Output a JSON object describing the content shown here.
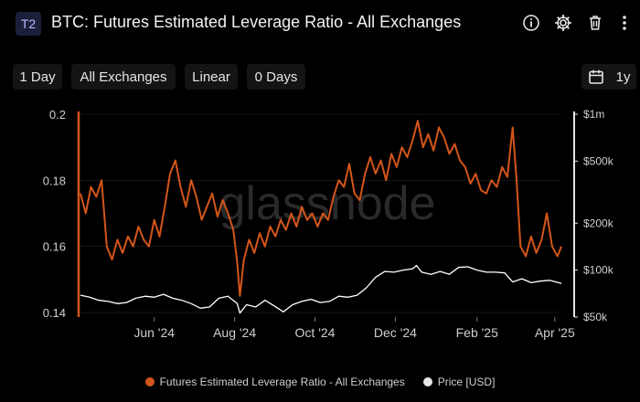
{
  "header": {
    "badge": "T2",
    "title": "BTC: Futures Estimated Leverage Ratio - All Exchanges",
    "icons": [
      "info-icon",
      "gear-icon",
      "trash-icon",
      "more-vertical-icon"
    ]
  },
  "toolbar": {
    "resolution": "1 Day",
    "exchange": "All Exchanges",
    "scale": "Linear",
    "sma": "0 Days",
    "calendar_icon": "calendar-icon",
    "range": "1y"
  },
  "watermark": "glassnode",
  "colors": {
    "series1": "#d4561a",
    "series2": "#ffffff",
    "background": "#000000"
  },
  "chart_data": {
    "type": "line",
    "x_ticks": [
      "Jun '24",
      "Aug '24",
      "Oct '24",
      "Dec '24",
      "Feb '25",
      "Apr '25"
    ],
    "y_left_ticks": [
      "0.2",
      "0.18",
      "0.16",
      "0.14"
    ],
    "y_left_lim": [
      0.14,
      0.2
    ],
    "y_right_ticks": [
      "$1m",
      "$500k",
      "$200k",
      "$100k",
      "$50k"
    ],
    "y_right_scale": "log",
    "y_right_lim": [
      50000,
      1000000
    ],
    "x_range": [
      "2024-04-06",
      "2025-04-06"
    ],
    "series": [
      {
        "name": "Futures Estimated Leverage Ratio - All Exchanges",
        "axis": "left",
        "color": "#d4561a",
        "points": [
          [
            "2024-04-06",
            0.176
          ],
          [
            "2024-04-10",
            0.17
          ],
          [
            "2024-04-14",
            0.178
          ],
          [
            "2024-04-18",
            0.175
          ],
          [
            "2024-04-22",
            0.18
          ],
          [
            "2024-04-26",
            0.16
          ],
          [
            "2024-04-30",
            0.156
          ],
          [
            "2024-05-04",
            0.162
          ],
          [
            "2024-05-08",
            0.158
          ],
          [
            "2024-05-12",
            0.163
          ],
          [
            "2024-05-16",
            0.16
          ],
          [
            "2024-05-20",
            0.166
          ],
          [
            "2024-05-24",
            0.162
          ],
          [
            "2024-05-28",
            0.16
          ],
          [
            "2024-06-01",
            0.168
          ],
          [
            "2024-06-05",
            0.163
          ],
          [
            "2024-06-09",
            0.172
          ],
          [
            "2024-06-13",
            0.182
          ],
          [
            "2024-06-17",
            0.186
          ],
          [
            "2024-06-21",
            0.178
          ],
          [
            "2024-06-25",
            0.172
          ],
          [
            "2024-06-29",
            0.18
          ],
          [
            "2024-07-03",
            0.175
          ],
          [
            "2024-07-07",
            0.168
          ],
          [
            "2024-07-11",
            0.172
          ],
          [
            "2024-07-15",
            0.176
          ],
          [
            "2024-07-19",
            0.169
          ],
          [
            "2024-07-23",
            0.174
          ],
          [
            "2024-07-27",
            0.17
          ],
          [
            "2024-07-31",
            0.165
          ],
          [
            "2024-08-03",
            0.155
          ],
          [
            "2024-08-05",
            0.145
          ],
          [
            "2024-08-08",
            0.156
          ],
          [
            "2024-08-12",
            0.162
          ],
          [
            "2024-08-16",
            0.158
          ],
          [
            "2024-08-20",
            0.164
          ],
          [
            "2024-08-24",
            0.16
          ],
          [
            "2024-08-28",
            0.166
          ],
          [
            "2024-09-01",
            0.163
          ],
          [
            "2024-09-05",
            0.168
          ],
          [
            "2024-09-09",
            0.165
          ],
          [
            "2024-09-13",
            0.17
          ],
          [
            "2024-09-17",
            0.166
          ],
          [
            "2024-09-21",
            0.172
          ],
          [
            "2024-09-25",
            0.168
          ],
          [
            "2024-09-29",
            0.17
          ],
          [
            "2024-10-03",
            0.166
          ],
          [
            "2024-10-07",
            0.17
          ],
          [
            "2024-10-11",
            0.168
          ],
          [
            "2024-10-15",
            0.175
          ],
          [
            "2024-10-19",
            0.18
          ],
          [
            "2024-10-23",
            0.178
          ],
          [
            "2024-10-27",
            0.185
          ],
          [
            "2024-10-31",
            0.176
          ],
          [
            "2024-11-04",
            0.174
          ],
          [
            "2024-11-08",
            0.182
          ],
          [
            "2024-11-12",
            0.187
          ],
          [
            "2024-11-16",
            0.182
          ],
          [
            "2024-11-20",
            0.186
          ],
          [
            "2024-11-24",
            0.18
          ],
          [
            "2024-11-28",
            0.188
          ],
          [
            "2024-12-02",
            0.184
          ],
          [
            "2024-12-06",
            0.19
          ],
          [
            "2024-12-10",
            0.187
          ],
          [
            "2024-12-14",
            0.192
          ],
          [
            "2024-12-18",
            0.198
          ],
          [
            "2024-12-22",
            0.19
          ],
          [
            "2024-12-26",
            0.194
          ],
          [
            "2024-12-30",
            0.189
          ],
          [
            "2025-01-03",
            0.196
          ],
          [
            "2025-01-07",
            0.193
          ],
          [
            "2025-01-11",
            0.188
          ],
          [
            "2025-01-15",
            0.191
          ],
          [
            "2025-01-19",
            0.186
          ],
          [
            "2025-01-23",
            0.184
          ],
          [
            "2025-01-27",
            0.179
          ],
          [
            "2025-01-31",
            0.182
          ],
          [
            "2025-02-04",
            0.177
          ],
          [
            "2025-02-08",
            0.176
          ],
          [
            "2025-02-12",
            0.18
          ],
          [
            "2025-02-16",
            0.178
          ],
          [
            "2025-02-20",
            0.184
          ],
          [
            "2025-02-24",
            0.181
          ],
          [
            "2025-02-28",
            0.196
          ],
          [
            "2025-03-03",
            0.18
          ],
          [
            "2025-03-06",
            0.16
          ],
          [
            "2025-03-10",
            0.157
          ],
          [
            "2025-03-14",
            0.163
          ],
          [
            "2025-03-18",
            0.158
          ],
          [
            "2025-03-22",
            0.162
          ],
          [
            "2025-03-26",
            0.17
          ],
          [
            "2025-03-30",
            0.16
          ],
          [
            "2025-04-03",
            0.157
          ],
          [
            "2025-04-06",
            0.16
          ]
        ]
      },
      {
        "name": "Price [USD]",
        "axis": "right",
        "color": "#ffffff",
        "points": [
          [
            "2024-04-06",
            69000
          ],
          [
            "2024-04-13",
            67000
          ],
          [
            "2024-04-20",
            64000
          ],
          [
            "2024-04-27",
            63000
          ],
          [
            "2024-05-04",
            61000
          ],
          [
            "2024-05-11",
            62000
          ],
          [
            "2024-05-18",
            66000
          ],
          [
            "2024-05-25",
            68000
          ],
          [
            "2024-06-01",
            67000
          ],
          [
            "2024-06-08",
            70000
          ],
          [
            "2024-06-15",
            66000
          ],
          [
            "2024-06-22",
            64000
          ],
          [
            "2024-06-29",
            61000
          ],
          [
            "2024-07-06",
            57000
          ],
          [
            "2024-07-13",
            58000
          ],
          [
            "2024-07-20",
            66000
          ],
          [
            "2024-07-27",
            68000
          ],
          [
            "2024-08-03",
            61000
          ],
          [
            "2024-08-05",
            53000
          ],
          [
            "2024-08-10",
            60000
          ],
          [
            "2024-08-17",
            58000
          ],
          [
            "2024-08-24",
            64000
          ],
          [
            "2024-08-31",
            59000
          ],
          [
            "2024-09-07",
            54000
          ],
          [
            "2024-09-14",
            60000
          ],
          [
            "2024-09-21",
            63000
          ],
          [
            "2024-09-28",
            65000
          ],
          [
            "2024-10-05",
            62000
          ],
          [
            "2024-10-12",
            63000
          ],
          [
            "2024-10-19",
            68000
          ],
          [
            "2024-10-26",
            67000
          ],
          [
            "2024-11-02",
            69000
          ],
          [
            "2024-11-09",
            77000
          ],
          [
            "2024-11-16",
            90000
          ],
          [
            "2024-11-23",
            98000
          ],
          [
            "2024-11-30",
            97000
          ],
          [
            "2024-12-07",
            100000
          ],
          [
            "2024-12-14",
            102000
          ],
          [
            "2024-12-17",
            107000
          ],
          [
            "2024-12-21",
            97000
          ],
          [
            "2024-12-28",
            94000
          ],
          [
            "2025-01-04",
            98000
          ],
          [
            "2025-01-11",
            94000
          ],
          [
            "2025-01-18",
            104000
          ],
          [
            "2025-01-25",
            105000
          ],
          [
            "2025-02-01",
            100000
          ],
          [
            "2025-02-08",
            97000
          ],
          [
            "2025-02-15",
            97000
          ],
          [
            "2025-02-22",
            96000
          ],
          [
            "2025-02-28",
            84000
          ],
          [
            "2025-03-07",
            88000
          ],
          [
            "2025-03-14",
            83000
          ],
          [
            "2025-03-21",
            85000
          ],
          [
            "2025-03-28",
            86000
          ],
          [
            "2025-04-04",
            83000
          ],
          [
            "2025-04-06",
            82000
          ]
        ]
      }
    ]
  }
}
